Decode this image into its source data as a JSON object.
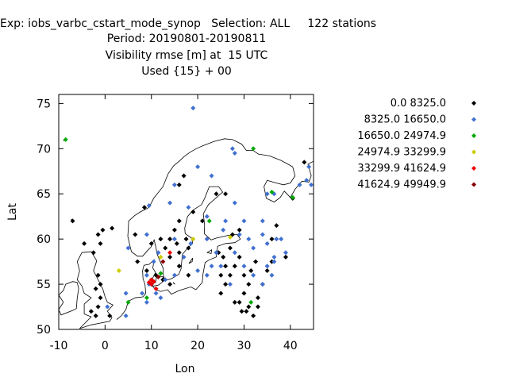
{
  "header": {
    "line1": "Exp: iobs_varbc_cstart_mode_synop   Selection: ALL     122 stations",
    "line2": "Period: 20190801-20190811",
    "line3": "Visibility rmse [m] at  15 UTC",
    "line4": "Used {15} + 00"
  },
  "chart_data": {
    "type": "scatter",
    "xlabel": "Lon",
    "ylabel": "Lat",
    "xlim": [
      -10,
      45
    ],
    "ylim": [
      50,
      76
    ],
    "xticks": [
      "-10",
      "0",
      "10",
      "20",
      "30",
      "40"
    ],
    "yticks": [
      "50",
      "55",
      "60",
      "65",
      "70",
      "75"
    ],
    "xtick_values": [
      -10,
      0,
      10,
      20,
      30,
      40
    ],
    "ytick_values": [
      50,
      55,
      60,
      65,
      70,
      75
    ],
    "legend_position": "right",
    "series": [
      {
        "name": "0.0 8325.0",
        "color": "#000000",
        "points": [
          [
            -7,
            62
          ],
          [
            -4.5,
            59.5
          ],
          [
            -2.5,
            58.5
          ],
          [
            -1.5,
            60.5
          ],
          [
            -0.5,
            61
          ],
          [
            -1,
            59.5
          ],
          [
            1.5,
            61.2
          ],
          [
            -1.5,
            56
          ],
          [
            -1,
            55
          ],
          [
            -2,
            54.5
          ],
          [
            -1,
            53.5
          ],
          [
            -1.5,
            52.5
          ],
          [
            -3,
            52
          ],
          [
            -2,
            51.5
          ],
          [
            1,
            51.5
          ],
          [
            6.5,
            60.5
          ],
          [
            8.5,
            63.5
          ],
          [
            16,
            66
          ],
          [
            17,
            67
          ],
          [
            19,
            63
          ],
          [
            16,
            62
          ],
          [
            15,
            61
          ],
          [
            17.5,
            60
          ],
          [
            12,
            60
          ],
          [
            14,
            60
          ],
          [
            15.5,
            59.5
          ],
          [
            13,
            59
          ],
          [
            16,
            58.5
          ],
          [
            14,
            58
          ],
          [
            18,
            59
          ],
          [
            21,
            62
          ],
          [
            24,
            65
          ],
          [
            26,
            65
          ],
          [
            27.5,
            60.5
          ],
          [
            29,
            61
          ],
          [
            27,
            59
          ],
          [
            29,
            58
          ],
          [
            28,
            57
          ],
          [
            26,
            57
          ],
          [
            27,
            56
          ],
          [
            25,
            56
          ],
          [
            30,
            56
          ],
          [
            31,
            55
          ],
          [
            31.5,
            56.5
          ],
          [
            32.5,
            57.5
          ],
          [
            30,
            54
          ],
          [
            29,
            53
          ],
          [
            29.5,
            52
          ],
          [
            31,
            52.5
          ],
          [
            32,
            51.5
          ],
          [
            33,
            53.5
          ],
          [
            34,
            55
          ],
          [
            35,
            56.5
          ],
          [
            37,
            61.5
          ],
          [
            36,
            60
          ],
          [
            10,
            55
          ],
          [
            11,
            56
          ],
          [
            12.5,
            55.5
          ],
          [
            9,
            56.5
          ],
          [
            7,
            57.5
          ],
          [
            43,
            68.5
          ],
          [
            40.5,
            64.5
          ],
          [
            16,
            57
          ],
          [
            24.5,
            58.5
          ],
          [
            25,
            54
          ],
          [
            26,
            55
          ],
          [
            28,
            53
          ],
          [
            30.5,
            52
          ],
          [
            33,
            52.5
          ],
          [
            36,
            57.5
          ],
          [
            39,
            58
          ],
          [
            25.5,
            58
          ],
          [
            10,
            59.5
          ],
          [
            18,
            56
          ],
          [
            14,
            55
          ]
        ]
      },
      {
        "name": "8325.0 16650.0",
        "color": "#4070d0",
        "points": [
          [
            19,
            74.5
          ],
          [
            27.5,
            70
          ],
          [
            28,
            69.5
          ],
          [
            20,
            68
          ],
          [
            15,
            66
          ],
          [
            23,
            67
          ],
          [
            9.5,
            63.7
          ],
          [
            14,
            64
          ],
          [
            18,
            63.5
          ],
          [
            22,
            62.5
          ],
          [
            28,
            64
          ],
          [
            26,
            62
          ],
          [
            25.5,
            61
          ],
          [
            30,
            62
          ],
          [
            29,
            60.5
          ],
          [
            34,
            62
          ],
          [
            34,
            60.5
          ],
          [
            35,
            59.5
          ],
          [
            37,
            60
          ],
          [
            38,
            60
          ],
          [
            35,
            57
          ],
          [
            36,
            56
          ],
          [
            34,
            55
          ],
          [
            36.5,
            58
          ],
          [
            36.5,
            57.5
          ],
          [
            35,
            65
          ],
          [
            36.5,
            65
          ],
          [
            44,
            68
          ],
          [
            43.5,
            66.5
          ],
          [
            44.5,
            66
          ],
          [
            42,
            66
          ],
          [
            9,
            60.5
          ],
          [
            11.5,
            58.5
          ],
          [
            10.5,
            57.5
          ],
          [
            9,
            56
          ],
          [
            9.5,
            55
          ],
          [
            8,
            54
          ],
          [
            9,
            53
          ],
          [
            11,
            54
          ],
          [
            12,
            53.5
          ],
          [
            4.5,
            54
          ],
          [
            4.5,
            51.5
          ],
          [
            0.5,
            52.5
          ],
          [
            5,
            59
          ],
          [
            15,
            60
          ],
          [
            18.5,
            59.5
          ],
          [
            22,
            60
          ],
          [
            24,
            58.5
          ],
          [
            23,
            57
          ],
          [
            27,
            55
          ],
          [
            28,
            58.5
          ],
          [
            31,
            60
          ],
          [
            32,
            59
          ],
          [
            32,
            56
          ],
          [
            30,
            57
          ],
          [
            25,
            57
          ],
          [
            20,
            56.5
          ],
          [
            22,
            56
          ],
          [
            15,
            56
          ],
          [
            13,
            55.5
          ],
          [
            17,
            58
          ],
          [
            39,
            58.5
          ]
        ]
      },
      {
        "name": "16650.0 24974.9",
        "color": "#00aa00",
        "points": [
          [
            -8.5,
            71
          ],
          [
            32,
            70
          ],
          [
            36,
            65.2
          ],
          [
            40.5,
            64.6
          ],
          [
            22.5,
            62
          ],
          [
            12,
            56.2
          ],
          [
            9,
            53.5
          ],
          [
            5,
            53
          ],
          [
            31.5,
            53
          ]
        ]
      },
      {
        "name": "24974.9 33299.9",
        "color": "#cccc00",
        "points": [
          [
            3,
            56.5
          ],
          [
            19,
            60
          ],
          [
            27,
            60.2
          ],
          [
            12,
            58
          ]
        ]
      },
      {
        "name": "33299.9 41624.9",
        "color": "#ee0000",
        "points": [
          [
            10,
            55.5
          ],
          [
            10,
            55
          ],
          [
            10.5,
            55.3
          ],
          [
            11,
            54.5
          ],
          [
            14,
            58.5
          ],
          [
            9.5,
            55.2
          ]
        ]
      },
      {
        "name": "41624.9 49949.9",
        "color": "#880000",
        "points": [
          [
            12.5,
            57.5
          ],
          [
            11.5,
            55.8
          ]
        ]
      }
    ]
  },
  "coastlines": [
    [
      [
        -5,
        58.5
      ],
      [
        -6,
        57.5
      ],
      [
        -5.5,
        56.5
      ],
      [
        -6,
        55.5
      ],
      [
        -5,
        54.8
      ],
      [
        -4.5,
        54
      ],
      [
        -3,
        53.5
      ],
      [
        -4.5,
        52.8
      ],
      [
        -4.5,
        51.7
      ],
      [
        -3,
        51.4
      ],
      [
        -5.5,
        50.1
      ],
      [
        -3,
        50.5
      ],
      [
        1,
        50.9
      ],
      [
        1.5,
        51.3
      ],
      [
        0.5,
        52
      ],
      [
        1.7,
        52.7
      ],
      [
        0.5,
        53
      ],
      [
        0,
        53.6
      ],
      [
        -0.5,
        54.5
      ],
      [
        -1.5,
        55.5
      ],
      [
        -2,
        56
      ],
      [
        -2.5,
        56.5
      ],
      [
        -1.8,
        57.6
      ],
      [
        -3,
        58.6
      ],
      [
        -5,
        58.5
      ]
    ],
    [
      [
        -6,
        55.2
      ],
      [
        -5.7,
        54.5
      ],
      [
        -6,
        53.5
      ],
      [
        -6.2,
        52.3
      ],
      [
        -7,
        52.1
      ],
      [
        -9.5,
        51.6
      ],
      [
        -10,
        52.2
      ],
      [
        -9,
        53
      ],
      [
        -10,
        53.8
      ],
      [
        -9,
        54.3
      ],
      [
        -8.5,
        55
      ],
      [
        -7,
        55.3
      ],
      [
        -6,
        55.2
      ]
    ],
    [
      [
        -7.3,
        62.2
      ],
      [
        -6.8,
        61.9
      ],
      [
        -7,
        62.1
      ],
      [
        -7.3,
        62.2
      ]
    ],
    [
      [
        2.5,
        51.1
      ],
      [
        3.5,
        51.5
      ],
      [
        4.5,
        52.2
      ],
      [
        5,
        53.1
      ],
      [
        6.5,
        53.5
      ],
      [
        8.2,
        53.6
      ],
      [
        8.8,
        54.0
      ],
      [
        8.6,
        55
      ],
      [
        8.2,
        55.6
      ],
      [
        8.1,
        56.5
      ],
      [
        8.4,
        57.1
      ],
      [
        9.5,
        57.2
      ],
      [
        10.6,
        57.7
      ],
      [
        10.3,
        56.8
      ],
      [
        10.9,
        56.3
      ],
      [
        10.2,
        55.6
      ],
      [
        9.9,
        55
      ],
      [
        10.9,
        54.4
      ],
      [
        12,
        54.2
      ],
      [
        13.5,
        54.4
      ],
      [
        14.3,
        53.9
      ],
      [
        16,
        54.3
      ],
      [
        18.5,
        54.7
      ],
      [
        19.6,
        54.4
      ],
      [
        21,
        55.2
      ],
      [
        21.1,
        56
      ],
      [
        21.6,
        57.4
      ],
      [
        22.5,
        57.7
      ],
      [
        24,
        58
      ],
      [
        24.3,
        59.2
      ],
      [
        26,
        59.5
      ],
      [
        28,
        59.6
      ],
      [
        29.2,
        60
      ],
      [
        28.5,
        60.5
      ],
      [
        26.5,
        60.4
      ],
      [
        24,
        60.1
      ],
      [
        22.9,
        59.9
      ],
      [
        21.4,
        60.6
      ],
      [
        21.5,
        61.5
      ],
      [
        21.2,
        62.8
      ],
      [
        22.3,
        63.8
      ],
      [
        24.7,
        64.9
      ],
      [
        25.4,
        65.2
      ],
      [
        24.5,
        65.8
      ],
      [
        22.5,
        65.8
      ],
      [
        21.5,
        64.5
      ],
      [
        20.8,
        63.8
      ],
      [
        19,
        63.2
      ],
      [
        17.8,
        62.5
      ],
      [
        17.2,
        61.2
      ],
      [
        17.3,
        60.6
      ],
      [
        18.7,
        60.1
      ],
      [
        18.9,
        59.5
      ],
      [
        17.8,
        59
      ],
      [
        16.7,
        58.3
      ],
      [
        16.4,
        56.7
      ],
      [
        15.9,
        56.1
      ],
      [
        14.3,
        55.6
      ],
      [
        12.9,
        55.4
      ],
      [
        12.5,
        56.2
      ],
      [
        12.6,
        56.7
      ],
      [
        11.9,
        57.5
      ],
      [
        11.2,
        58.4
      ],
      [
        11,
        59
      ],
      [
        10.6,
        59.9
      ],
      [
        9.9,
        59.1
      ],
      [
        9.3,
        58.8
      ],
      [
        8.1,
        58.1
      ],
      [
        7,
        58.1
      ],
      [
        5.7,
        58.6
      ],
      [
        5.3,
        59.4
      ],
      [
        4.9,
        60.3
      ],
      [
        5,
        61
      ],
      [
        5.1,
        62
      ],
      [
        6.4,
        62.6
      ],
      [
        7.6,
        63
      ],
      [
        9.5,
        63.5
      ],
      [
        10.5,
        64.5
      ],
      [
        12.5,
        65.8
      ],
      [
        13.6,
        67.2
      ],
      [
        14.8,
        68.1
      ],
      [
        16,
        68.6
      ],
      [
        17,
        69.1
      ],
      [
        18.3,
        69.6
      ],
      [
        19.7,
        70
      ],
      [
        21,
        70.3
      ],
      [
        23.5,
        70.8
      ],
      [
        25.8,
        71.1
      ],
      [
        27.5,
        71
      ],
      [
        29.5,
        70.5
      ],
      [
        30.5,
        69.8
      ],
      [
        32,
        69.8
      ],
      [
        33.1,
        69.4
      ],
      [
        35.5,
        69.2
      ],
      [
        38,
        68.7
      ],
      [
        40.5,
        68
      ],
      [
        41,
        67
      ],
      [
        40,
        66.2
      ],
      [
        38.5,
        66
      ],
      [
        37,
        66.2
      ],
      [
        35,
        66.5
      ],
      [
        34.3,
        65.8
      ],
      [
        34.8,
        64.5
      ],
      [
        36.5,
        64.1
      ],
      [
        37.8,
        64.6
      ],
      [
        38.7,
        65.3
      ],
      [
        40,
        64.6
      ],
      [
        41,
        65.5
      ],
      [
        42.5,
        66.4
      ],
      [
        44,
        66.3
      ],
      [
        44.5,
        67
      ],
      [
        43.8,
        68.3
      ],
      [
        45,
        68.6
      ]
    ],
    [
      [
        10,
        55
      ],
      [
        10.9,
        55.2
      ],
      [
        11.2,
        56
      ],
      [
        12.6,
        55.8
      ],
      [
        12.3,
        55.2
      ],
      [
        11.5,
        54.9
      ],
      [
        10.4,
        54.8
      ],
      [
        10,
        55
      ]
    ],
    [
      [
        14.7,
        55.2
      ],
      [
        15.1,
        55
      ],
      [
        14.8,
        55.1
      ],
      [
        14.7,
        55.2
      ]
    ],
    [
      [
        18.1,
        57.3
      ],
      [
        18.9,
        57.9
      ],
      [
        18.8,
        57.5
      ],
      [
        18.1,
        57.3
      ]
    ],
    [
      [
        22,
        58.5
      ],
      [
        23,
        58.8
      ],
      [
        22.9,
        58.4
      ],
      [
        22,
        58.5
      ]
    ],
    [
      [
        -9,
        70.9
      ],
      [
        -8.2,
        71.1
      ],
      [
        -8.5,
        70.9
      ],
      [
        -9,
        70.9
      ]
    ]
  ]
}
